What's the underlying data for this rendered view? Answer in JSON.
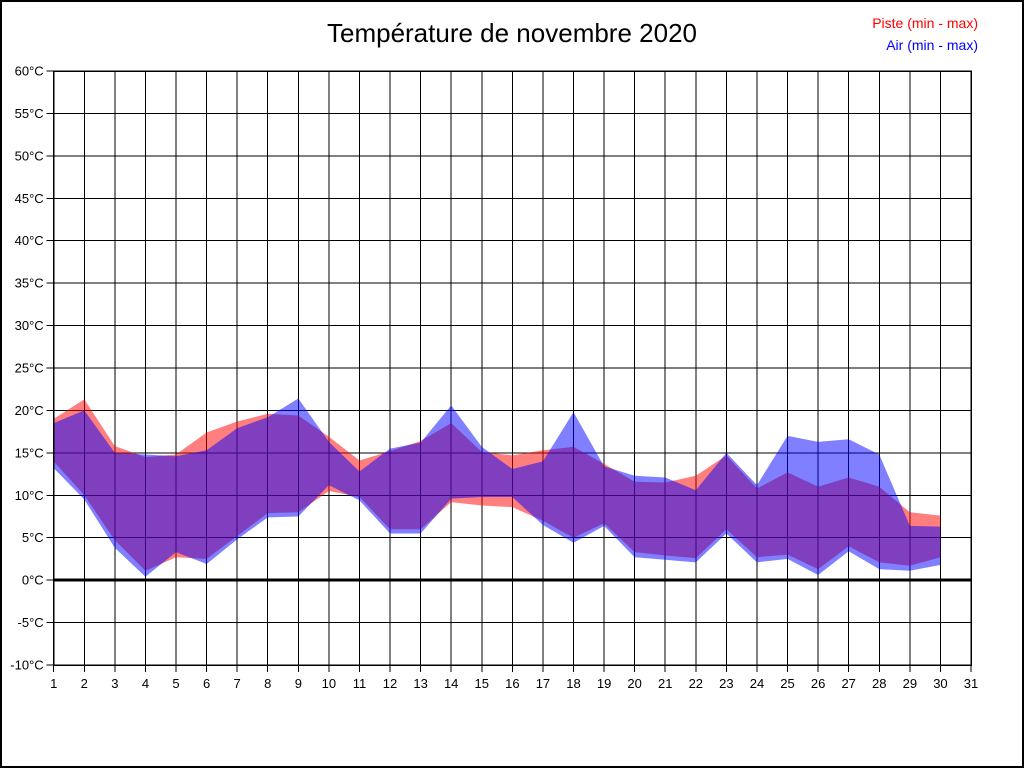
{
  "title": "Température de novembre 2020",
  "legend": [
    {
      "label": "Piste (min - max)",
      "color": "#ff0000"
    },
    {
      "label": "Air (min - max)",
      "color": "#0000ff"
    }
  ],
  "chart_data": {
    "type": "area",
    "subtype": "min-max-bands",
    "title": "Température de novembre 2020",
    "xlabel": "",
    "ylabel": "",
    "xlim": [
      1,
      31
    ],
    "ylim": [
      -10,
      60
    ],
    "grid": true,
    "legend_position": "top-right",
    "background": "#ffffff",
    "grid_color": "#000000",
    "zero_line_value": 0,
    "y_ticks": [
      {
        "value": 60,
        "label": "60°C"
      },
      {
        "value": 55,
        "label": "55°C"
      },
      {
        "value": 50,
        "label": "50°C"
      },
      {
        "value": 45,
        "label": "45°C"
      },
      {
        "value": 40,
        "label": "40°C"
      },
      {
        "value": 35,
        "label": "35°C"
      },
      {
        "value": 30,
        "label": "30°C"
      },
      {
        "value": 25,
        "label": "25°C"
      },
      {
        "value": 20,
        "label": "20°C"
      },
      {
        "value": 15,
        "label": "15°C"
      },
      {
        "value": 10,
        "label": "10°C"
      },
      {
        "value": 5,
        "label": "5°C"
      },
      {
        "value": 0,
        "label": "0°C"
      },
      {
        "value": -5,
        "label": "-5°C"
      },
      {
        "value": -10,
        "label": "-10°C"
      }
    ],
    "x_ticks": [
      {
        "value": 1,
        "label": "1"
      },
      {
        "value": 2,
        "label": "2"
      },
      {
        "value": 3,
        "label": "3"
      },
      {
        "value": 4,
        "label": "4"
      },
      {
        "value": 5,
        "label": "5"
      },
      {
        "value": 6,
        "label": "6"
      },
      {
        "value": 7,
        "label": "7"
      },
      {
        "value": 8,
        "label": "8"
      },
      {
        "value": 9,
        "label": "9"
      },
      {
        "value": 10,
        "label": "10"
      },
      {
        "value": 11,
        "label": "11"
      },
      {
        "value": 12,
        "label": "12"
      },
      {
        "value": 13,
        "label": "13"
      },
      {
        "value": 14,
        "label": "14"
      },
      {
        "value": 15,
        "label": "15"
      },
      {
        "value": 16,
        "label": "16"
      },
      {
        "value": 17,
        "label": "17"
      },
      {
        "value": 18,
        "label": "18"
      },
      {
        "value": 19,
        "label": "19"
      },
      {
        "value": 20,
        "label": "20"
      },
      {
        "value": 21,
        "label": "21"
      },
      {
        "value": 22,
        "label": "22"
      },
      {
        "value": 23,
        "label": "23"
      },
      {
        "value": 24,
        "label": "24"
      },
      {
        "value": 25,
        "label": "25"
      },
      {
        "value": 26,
        "label": "26"
      },
      {
        "value": 27,
        "label": "27"
      },
      {
        "value": 28,
        "label": "28"
      },
      {
        "value": 29,
        "label": "29"
      },
      {
        "value": 30,
        "label": "30"
      },
      {
        "value": 31,
        "label": "31"
      }
    ],
    "series": [
      {
        "name": "Piste (min - max)",
        "legend_color": "#ff0000",
        "fill": "rgba(255,0,0,0.5)",
        "days": [
          1,
          2,
          3,
          4,
          5,
          6,
          7,
          8,
          9,
          10,
          11,
          12,
          13,
          14,
          15,
          16,
          17,
          18,
          19,
          20,
          21,
          22,
          23,
          24,
          25,
          26,
          27,
          28,
          29,
          30
        ],
        "min": [
          14.0,
          10.0,
          4.7,
          1.1,
          2.7,
          2.5,
          5.2,
          7.9,
          8.0,
          10.5,
          9.8,
          6.0,
          6.0,
          9.2,
          8.8,
          8.6,
          7.0,
          5.0,
          6.7,
          3.3,
          2.9,
          2.6,
          6.0,
          2.7,
          3.0,
          1.3,
          4.0,
          2.1,
          1.7,
          2.7
        ],
        "max": [
          19.0,
          21.3,
          15.8,
          14.5,
          14.8,
          17.4,
          18.7,
          19.6,
          19.4,
          16.9,
          14.1,
          15.2,
          16.4,
          18.5,
          15.1,
          14.7,
          15.3,
          15.7,
          13.7,
          11.6,
          11.5,
          12.3,
          14.7,
          10.8,
          12.7,
          11.0,
          12.1,
          11.0,
          8.0,
          7.6
        ]
      },
      {
        "name": "Air (min - max)",
        "legend_color": "#0000ff",
        "fill": "rgba(0,0,255,0.5)",
        "days": [
          1,
          2,
          3,
          4,
          5,
          6,
          7,
          8,
          9,
          10,
          11,
          12,
          13,
          14,
          15,
          16,
          17,
          18,
          19,
          20,
          21,
          22,
          23,
          24,
          25,
          26,
          27,
          28,
          29,
          30
        ],
        "min": [
          13.2,
          9.5,
          3.8,
          0.4,
          3.3,
          1.9,
          4.8,
          7.4,
          7.5,
          11.2,
          9.4,
          5.5,
          5.5,
          9.6,
          9.8,
          9.8,
          6.5,
          4.4,
          6.4,
          2.7,
          2.4,
          2.1,
          5.5,
          2.1,
          2.5,
          0.6,
          3.4,
          1.3,
          1.1,
          1.8
        ],
        "max": [
          18.5,
          20.0,
          15.0,
          14.8,
          14.6,
          15.3,
          17.9,
          19.2,
          21.4,
          16.3,
          12.8,
          15.5,
          16.2,
          20.6,
          15.7,
          13.1,
          14.0,
          19.8,
          13.4,
          12.3,
          12.1,
          10.6,
          15.0,
          11.2,
          17.0,
          16.3,
          16.6,
          14.8,
          6.4,
          6.3
        ]
      }
    ]
  }
}
